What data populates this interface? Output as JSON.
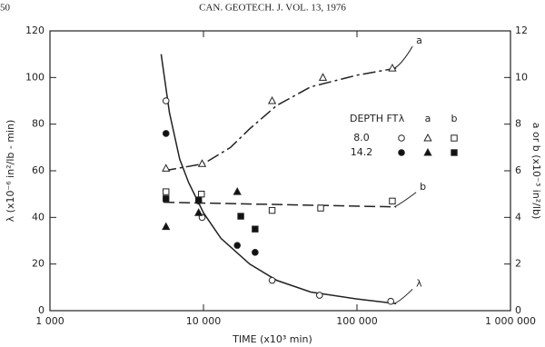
{
  "page_header": {
    "page": "50",
    "journal": "CAN. GEOTECH. J. VOL. 13, 1976"
  },
  "chart_data": {
    "type": "scatter",
    "xlabel": "TIME (x10³ min)",
    "ylabel": "λ (x10⁻⁶ in²/lb - min)",
    "y2label": "a or b (x10⁻³ in²/lb)",
    "xscale": "log",
    "xlim": [
      1000,
      1000000
    ],
    "xticks": [
      {
        "value": 1000,
        "label": "1 000"
      },
      {
        "value": 10000,
        "label": "10 000"
      },
      {
        "value": 100000,
        "label": "100 000"
      },
      {
        "value": 1000000,
        "label": "1 000 000"
      }
    ],
    "ylim": [
      0,
      120
    ],
    "yticks": [
      0,
      20,
      40,
      60,
      80,
      100,
      120
    ],
    "y2lim": [
      0,
      12
    ],
    "y2ticks": [
      0,
      2,
      4,
      6,
      8,
      10,
      12
    ],
    "legend": {
      "title": "DEPTH FT",
      "columns": [
        "λ",
        "a",
        "b"
      ],
      "rows": [
        "8.0",
        "14.2"
      ]
    },
    "series": [
      {
        "marker": "circle",
        "filled": false,
        "axis": "y",
        "x": [
          5700,
          9800,
          28000,
          57000,
          166000
        ],
        "values": [
          90,
          40,
          13,
          6.6,
          4
        ]
      },
      {
        "marker": "triangle",
        "filled": false,
        "axis": "y2",
        "x": [
          5700,
          9800,
          28000,
          60000,
          170000
        ],
        "values": [
          6.1,
          6.3,
          9.0,
          10.0,
          10.4
        ]
      },
      {
        "marker": "square",
        "filled": false,
        "axis": "y2",
        "x": [
          5700,
          9700,
          28000,
          58000,
          170000
        ],
        "values": [
          5.1,
          5.0,
          4.3,
          4.4,
          4.7
        ]
      },
      {
        "marker": "circle",
        "filled": true,
        "axis": "y",
        "x": [
          5700,
          9300,
          16600,
          21700
        ],
        "values": [
          76,
          47,
          28,
          25
        ]
      },
      {
        "marker": "triangle",
        "filled": true,
        "axis": "y2",
        "x": [
          5700,
          9300,
          16600
        ],
        "values": [
          3.6,
          4.2,
          5.1
        ]
      },
      {
        "marker": "square",
        "filled": true,
        "axis": "y2",
        "x": [
          5700,
          9300,
          17500,
          21700
        ],
        "values": [
          4.8,
          4.75,
          4.05,
          3.5
        ]
      }
    ],
    "curves": [
      {
        "name": "λ",
        "axis": "y",
        "dash": "solid",
        "x": [
          5300,
          6000,
          7000,
          8000,
          10000,
          13000,
          20000,
          30000,
          50000,
          100000,
          180000
        ],
        "values": [
          110,
          85,
          65,
          55,
          42,
          31,
          20,
          13,
          8,
          5,
          3
        ]
      },
      {
        "name": "a",
        "axis": "y2",
        "dash": "long-short",
        "x": [
          5500,
          10000,
          15000,
          20000,
          30000,
          50000,
          100000,
          180000
        ],
        "values": [
          6.0,
          6.3,
          7.0,
          7.8,
          8.8,
          9.6,
          10.1,
          10.4
        ]
      },
      {
        "name": "b",
        "axis": "y2",
        "dash": "dashed",
        "x": [
          5500,
          180000
        ],
        "values": [
          4.65,
          4.45
        ]
      }
    ]
  }
}
